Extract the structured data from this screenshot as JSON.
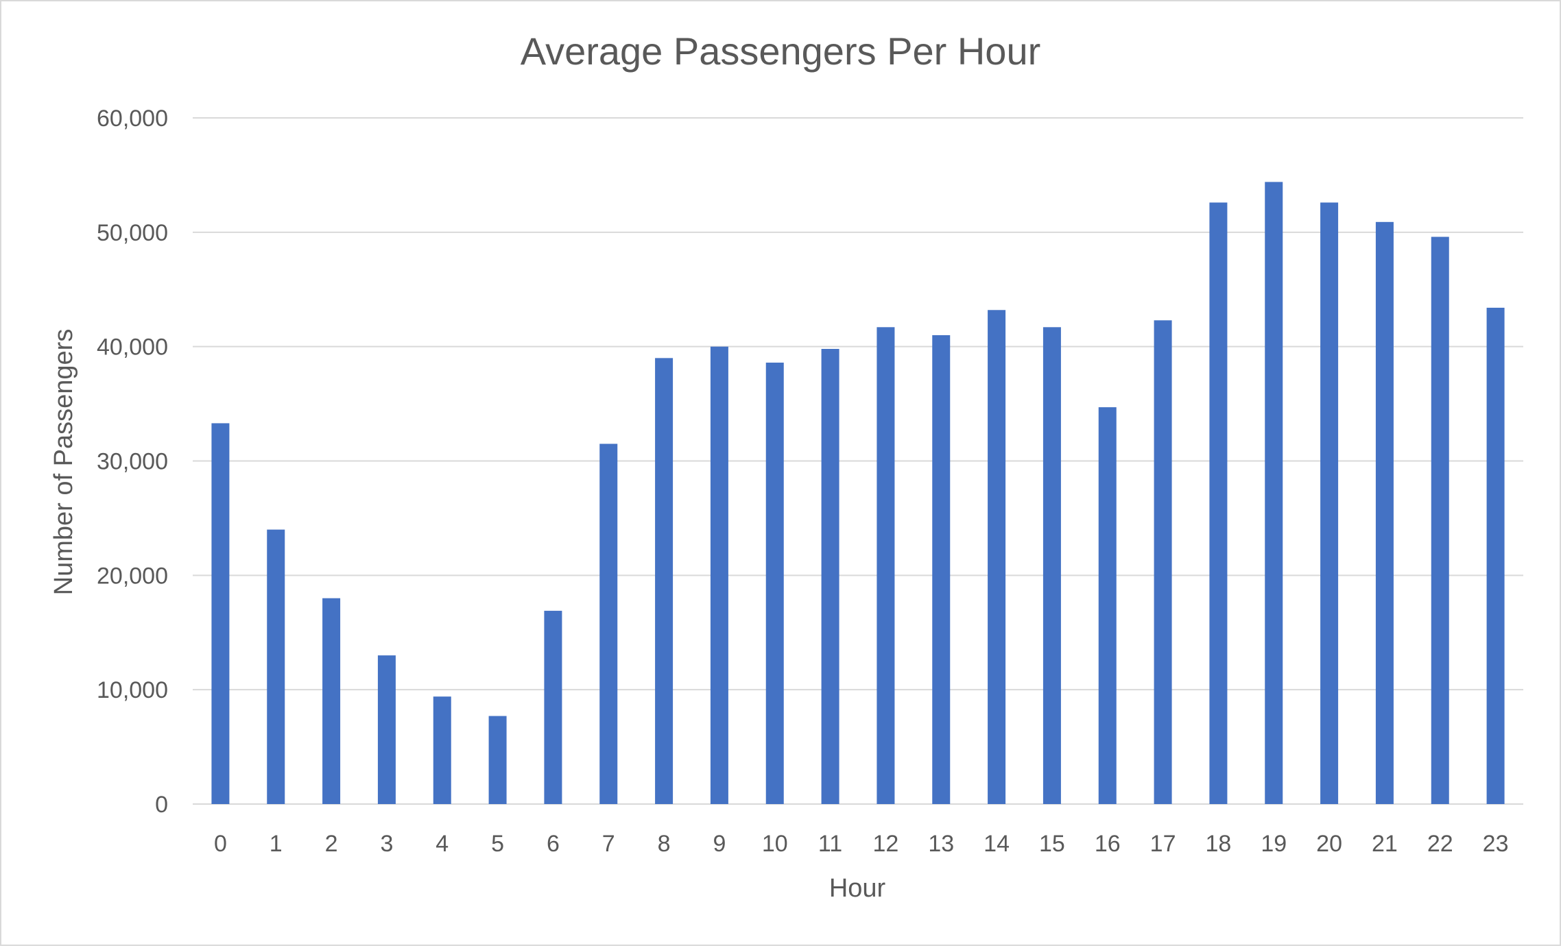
{
  "chart_data": {
    "type": "bar",
    "title": "Average Passengers Per Hour",
    "xlabel": "Hour",
    "ylabel": "Number of Passengers",
    "categories": [
      "0",
      "1",
      "2",
      "3",
      "4",
      "5",
      "6",
      "7",
      "8",
      "9",
      "10",
      "11",
      "12",
      "13",
      "14",
      "15",
      "16",
      "17",
      "18",
      "19",
      "20",
      "21",
      "22",
      "23"
    ],
    "series": [
      {
        "values": [
          33300,
          24000,
          18000,
          13000,
          9400,
          7700,
          16900,
          31500,
          39000,
          40000,
          38600,
          39800,
          41700,
          41000,
          43200,
          41700,
          34700,
          42300,
          52600,
          54400,
          52600,
          50900,
          49600,
          43400
        ]
      }
    ],
    "ylim": [
      0,
      60000
    ],
    "yticks": [
      0,
      10000,
      20000,
      30000,
      40000,
      50000,
      60000
    ],
    "ytick_labels": [
      "0",
      "10,000",
      "20,000",
      "30,000",
      "40,000",
      "50,000",
      "60,000"
    ],
    "grid": true,
    "legend": "none",
    "bar_color": "#4472C4"
  }
}
